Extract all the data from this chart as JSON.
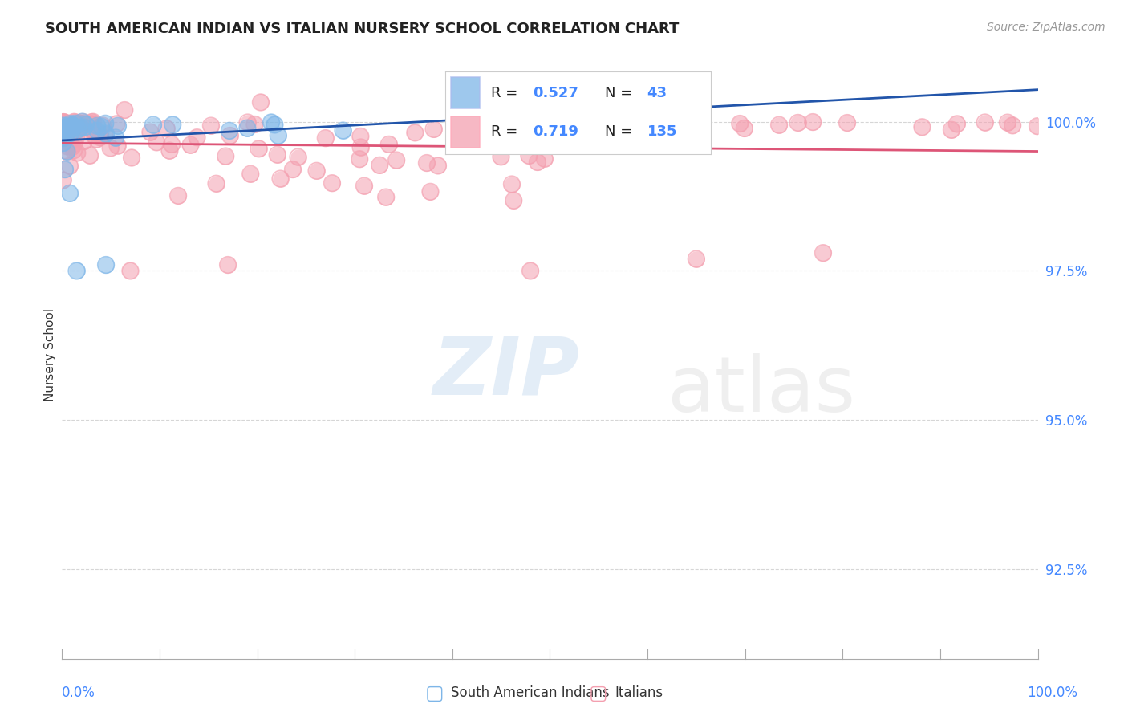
{
  "title": "SOUTH AMERICAN INDIAN VS ITALIAN NURSERY SCHOOL CORRELATION CHART",
  "source": "Source: ZipAtlas.com",
  "ylabel": "Nursery School",
  "blue_R": 0.527,
  "blue_N": 43,
  "pink_R": 0.719,
  "pink_N": 135,
  "blue_color": "#7EB6E8",
  "pink_color": "#F4A0B0",
  "blue_line_color": "#2255AA",
  "pink_line_color": "#DD5577",
  "background_color": "#FFFFFF",
  "legend_label_blue": "South American Indians",
  "legend_label_pink": "Italians",
  "yticks": [
    92.5,
    95.0,
    97.5,
    100.0
  ],
  "ymin": 91.0,
  "ymax": 101.2,
  "xmin": 0.0,
  "xmax": 100.0
}
